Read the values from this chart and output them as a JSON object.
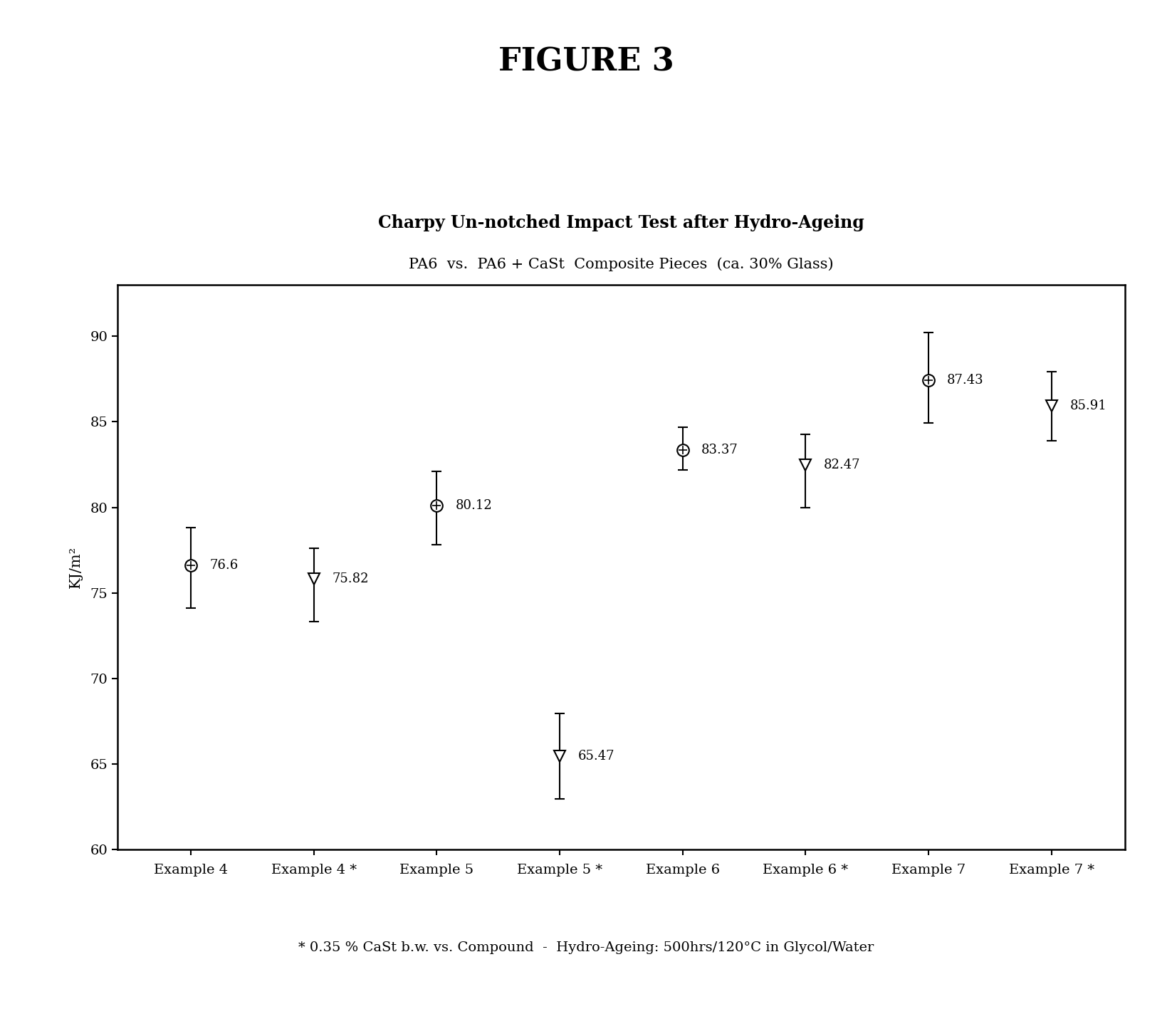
{
  "figure_title": "FIGURE 3",
  "chart_title": "Charpy Un-notched Impact Test after Hydro-Ageing",
  "chart_subtitle": "PA6  vs.  PA6 + CaSt  Composite Pieces  (ca. 30% Glass)",
  "footnote": "* 0.35 % CaSt b.w. vs. Compound  -  Hydro-Ageing: 500hrs/120°C in Glycol/Water",
  "ylabel": "KJ/m²",
  "categories": [
    "Example 4",
    "Example 4 *",
    "Example 5",
    "Example 5 *",
    "Example 6",
    "Example 6 *",
    "Example 7",
    "Example 7 *"
  ],
  "values": [
    76.6,
    75.82,
    80.12,
    65.47,
    83.37,
    82.47,
    87.43,
    85.91
  ],
  "err_up": [
    2.2,
    1.8,
    2.0,
    2.5,
    1.3,
    1.8,
    2.8,
    2.0
  ],
  "err_down": [
    2.5,
    2.5,
    2.3,
    2.5,
    1.2,
    2.5,
    2.5,
    2.0
  ],
  "marker_types": [
    "circle_cross",
    "triangle_down",
    "circle_cross",
    "triangle_down",
    "circle_cross",
    "triangle_down",
    "circle_cross",
    "triangle_down"
  ],
  "ylim": [
    60,
    93
  ],
  "yticks": [
    60,
    65,
    70,
    75,
    80,
    85,
    90
  ],
  "background_color": "#ffffff",
  "plot_bg_color": "#ffffff",
  "marker_size": 12,
  "linewidth": 1.5,
  "capsize": 5,
  "figure_title_fontsize": 32,
  "chart_title_fontsize": 17,
  "chart_subtitle_fontsize": 15,
  "footnote_fontsize": 14,
  "tick_fontsize": 14,
  "ylabel_fontsize": 15
}
